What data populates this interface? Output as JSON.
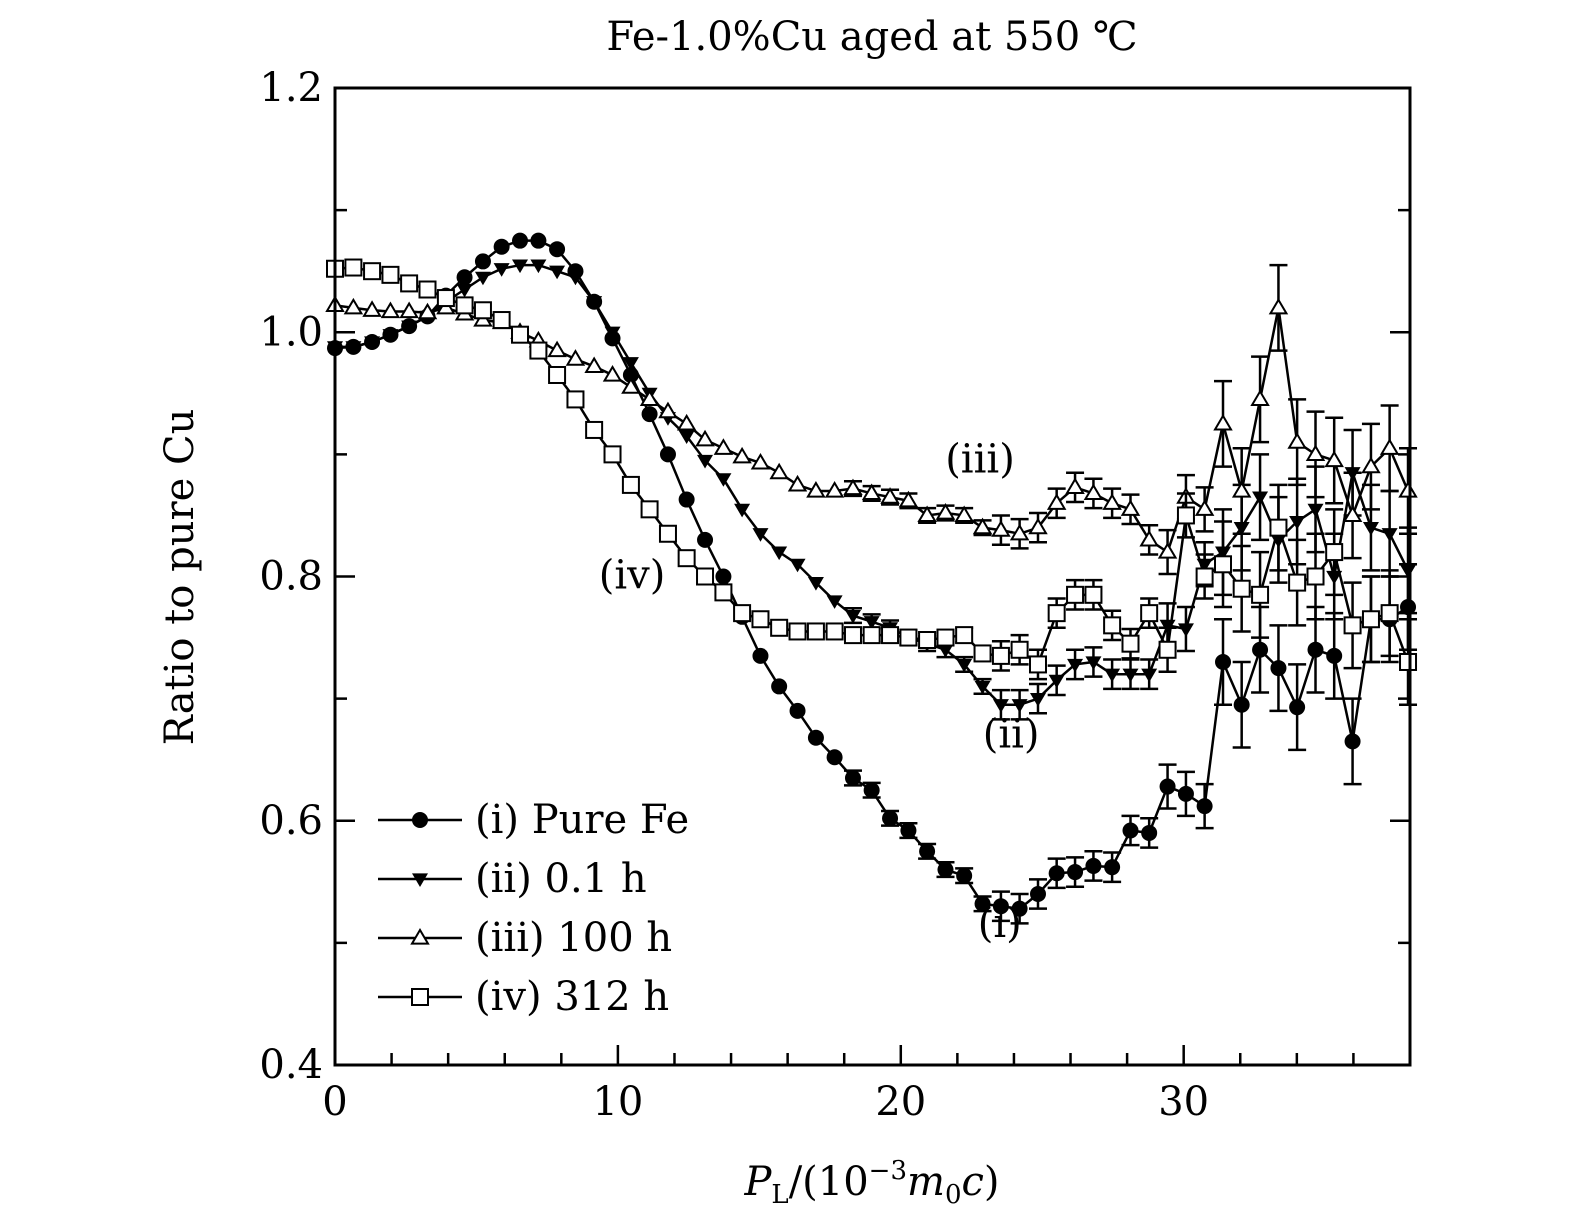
{
  "chart_data": {
    "type": "line",
    "title": "Fe-1.0%Cu aged at 550 ℃",
    "xlabel": {
      "main": "P",
      "sub": "L",
      "rest1": "/(10",
      "sup": "−3",
      "m": "m",
      "msub": "0",
      "c": "c",
      "close": ")"
    },
    "ylabel": "Ratio to pure Cu",
    "xlim": [
      0,
      38
    ],
    "ylim": [
      0.4,
      1.2
    ],
    "xticks": [
      0,
      10,
      20,
      30
    ],
    "xtick_labels": [
      "0",
      "10",
      "20",
      "30"
    ],
    "yticks": [
      0.4,
      0.6,
      0.8,
      1.0,
      1.2
    ],
    "ytick_labels": [
      "0.4",
      "0.6",
      "0.8",
      "1.0",
      "1.2"
    ],
    "grid": false,
    "legend_position": "bottom-left",
    "x": [
      0,
      0.65,
      1.31,
      1.96,
      2.62,
      3.27,
      3.92,
      4.58,
      5.23,
      5.89,
      6.54,
      7.19,
      7.85,
      8.5,
      9.16,
      9.81,
      10.46,
      11.12,
      11.77,
      12.43,
      13.08,
      13.73,
      14.39,
      15.04,
      15.7,
      16.35,
      17.0,
      17.66,
      18.31,
      18.97,
      19.62,
      20.27,
      20.93,
      21.58,
      22.24,
      22.89,
      23.54,
      24.2,
      24.85,
      25.51,
      26.16,
      26.81,
      27.47,
      28.12,
      28.78,
      29.43,
      30.08,
      30.74,
      31.39,
      32.05,
      32.7,
      33.35,
      34.01,
      34.66,
      35.32,
      35.97,
      36.62,
      37.28,
      37.93
    ],
    "yerr": [
      0.003,
      0.003,
      0.003,
      0.003,
      0.003,
      0.003,
      0.003,
      0.003,
      0.003,
      0.003,
      0.003,
      0.003,
      0.003,
      0.003,
      0.003,
      0.003,
      0.003,
      0.003,
      0.003,
      0.003,
      0.003,
      0.003,
      0.003,
      0.003,
      0.003,
      0.003,
      0.003,
      0.003,
      0.006,
      0.006,
      0.006,
      0.006,
      0.006,
      0.006,
      0.006,
      0.006,
      0.012,
      0.012,
      0.012,
      0.012,
      0.012,
      0.012,
      0.012,
      0.012,
      0.012,
      0.018,
      0.018,
      0.018,
      0.035,
      0.035,
      0.035,
      0.035,
      0.035,
      0.035,
      0.035,
      0.035,
      0.035,
      0.035,
      0.035
    ],
    "series": [
      {
        "name": "(i) Pure Fe",
        "marker": "filled-circle",
        "label": "(i)",
        "values": [
          0.987,
          0.988,
          0.992,
          0.998,
          1.005,
          1.013,
          1.03,
          1.045,
          1.058,
          1.07,
          1.075,
          1.075,
          1.068,
          1.05,
          1.025,
          0.995,
          0.965,
          0.933,
          0.9,
          0.863,
          0.83,
          0.8,
          0.767,
          0.735,
          0.71,
          0.69,
          0.668,
          0.652,
          0.635,
          0.625,
          0.602,
          0.592,
          0.575,
          0.56,
          0.555,
          0.532,
          0.53,
          0.528,
          0.54,
          0.557,
          0.558,
          0.563,
          0.562,
          0.592,
          0.59,
          0.628,
          0.622,
          0.612,
          0.73,
          0.695,
          0.74,
          0.725,
          0.693,
          0.74,
          0.735,
          0.665,
          0.765,
          0.765,
          0.775
        ]
      },
      {
        "name": "(ii) 0.1 h",
        "marker": "filled-triangle-down",
        "label": "(ii)",
        "values": [
          0.988,
          0.988,
          0.992,
          0.998,
          1.005,
          1.013,
          1.025,
          1.035,
          1.045,
          1.052,
          1.055,
          1.055,
          1.05,
          1.045,
          1.025,
          1.0,
          0.975,
          0.95,
          0.93,
          0.915,
          0.895,
          0.88,
          0.855,
          0.835,
          0.82,
          0.81,
          0.795,
          0.78,
          0.768,
          0.763,
          0.758,
          0.75,
          0.745,
          0.74,
          0.728,
          0.71,
          0.695,
          0.695,
          0.7,
          0.715,
          0.728,
          0.73,
          0.72,
          0.72,
          0.72,
          0.76,
          0.757,
          0.81,
          0.82,
          0.84,
          0.865,
          0.83,
          0.845,
          0.855,
          0.8,
          0.885,
          0.84,
          0.835,
          0.805
        ]
      },
      {
        "name": "(iii) 100 h",
        "marker": "open-triangle-up",
        "label": "(iii)",
        "values": [
          1.022,
          1.02,
          1.018,
          1.017,
          1.017,
          1.016,
          1.02,
          1.015,
          1.01,
          1.008,
          1.0,
          0.993,
          0.985,
          0.978,
          0.972,
          0.965,
          0.955,
          0.945,
          0.935,
          0.925,
          0.912,
          0.905,
          0.898,
          0.893,
          0.885,
          0.875,
          0.87,
          0.87,
          0.872,
          0.868,
          0.865,
          0.862,
          0.85,
          0.852,
          0.85,
          0.84,
          0.838,
          0.835,
          0.84,
          0.86,
          0.873,
          0.868,
          0.86,
          0.855,
          0.83,
          0.82,
          0.865,
          0.855,
          0.925,
          0.87,
          0.945,
          1.02,
          0.91,
          0.9,
          0.895,
          0.85,
          0.89,
          0.905,
          0.87
        ]
      },
      {
        "name": "(iv) 312 h",
        "marker": "open-square",
        "label": "(iv)",
        "values": [
          1.052,
          1.053,
          1.05,
          1.047,
          1.04,
          1.035,
          1.028,
          1.022,
          1.018,
          1.01,
          0.998,
          0.985,
          0.965,
          0.945,
          0.92,
          0.9,
          0.875,
          0.855,
          0.835,
          0.815,
          0.8,
          0.787,
          0.77,
          0.765,
          0.758,
          0.755,
          0.755,
          0.755,
          0.752,
          0.752,
          0.752,
          0.75,
          0.748,
          0.75,
          0.752,
          0.737,
          0.735,
          0.74,
          0.728,
          0.77,
          0.785,
          0.785,
          0.76,
          0.745,
          0.77,
          0.74,
          0.85,
          0.8,
          0.81,
          0.79,
          0.785,
          0.84,
          0.795,
          0.8,
          0.82,
          0.76,
          0.765,
          0.77,
          0.73
        ]
      }
    ],
    "annotations": [
      {
        "text": "(i)",
        "x": 23.5,
        "y": 0.505
      },
      {
        "text": "(ii)",
        "x": 23.9,
        "y": 0.66
      },
      {
        "text": "(iii)",
        "x": 22.8,
        "y": 0.885
      },
      {
        "text": "(iv)",
        "x": 10.5,
        "y": 0.79
      }
    ]
  }
}
